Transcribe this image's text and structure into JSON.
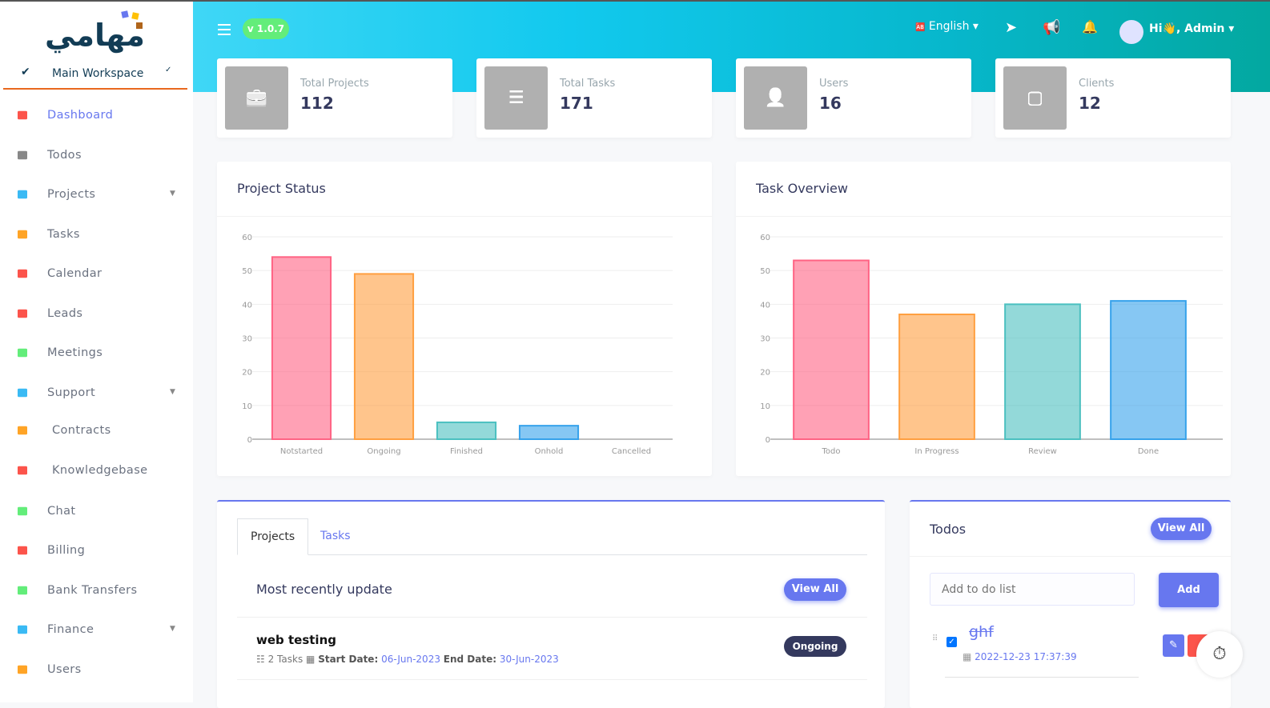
{
  "brand": {
    "logo_text": "مهامي",
    "workspace": "Main Workspace"
  },
  "sidebar": {
    "items": [
      {
        "label": "Dashboard",
        "icon": "fire-icon",
        "color": "#fc544b",
        "active": true
      },
      {
        "label": "Todos",
        "icon": "list-check-icon",
        "color": "#888"
      },
      {
        "label": "Projects",
        "icon": "file-icon",
        "color": "#3abaf4",
        "dropdown": true
      },
      {
        "label": "Tasks",
        "icon": "tasks-icon",
        "color": "#ffa426"
      },
      {
        "label": "Calendar",
        "icon": "calendar-icon",
        "color": "#fc544b"
      },
      {
        "label": "Leads",
        "icon": "phone-icon",
        "color": "#fc544b"
      },
      {
        "label": "Meetings",
        "icon": "handshake-icon",
        "color": "#63ed7a"
      },
      {
        "label": "Support",
        "icon": "ticket-icon",
        "color": "#3abaf4",
        "dropdown": true
      },
      {
        "label": "Contracts",
        "icon": "contract-icon",
        "color": "#ffa426",
        "sub": true
      },
      {
        "label": "Knowledgebase",
        "icon": "book-icon",
        "color": "#fc544b",
        "sub": true
      },
      {
        "label": "Chat",
        "icon": "chat-icon",
        "color": "#63ed7a"
      },
      {
        "label": "Billing",
        "icon": "invoice-icon",
        "color": "#fc544b"
      },
      {
        "label": "Bank Transfers",
        "icon": "bank-icon",
        "color": "#63ed7a"
      },
      {
        "label": "Finance",
        "icon": "money-icon",
        "color": "#3abaf4",
        "dropdown": true
      },
      {
        "label": "Users",
        "icon": "user-icon",
        "color": "#ffa426"
      }
    ]
  },
  "header": {
    "version": "v 1.0.7",
    "language": "English",
    "greeting": "Hi👋, Admin"
  },
  "stats": [
    {
      "title": "Total Projects",
      "value": "112",
      "icon": "briefcase-icon"
    },
    {
      "title": "Total Tasks",
      "value": "171",
      "icon": "list-icon"
    },
    {
      "title": "Users",
      "value": "16",
      "icon": "user-icon"
    },
    {
      "title": "Clients",
      "value": "12",
      "icon": "sticky-note-icon"
    }
  ],
  "chart_data": [
    {
      "type": "bar",
      "title": "Project Status",
      "categories": [
        "Notstarted",
        "Ongoing",
        "Finished",
        "Onhold",
        "Cancelled"
      ],
      "values": [
        54,
        49,
        5,
        4,
        0
      ],
      "ylim": [
        0,
        60
      ],
      "yticks": [
        0,
        10,
        20,
        30,
        40,
        50,
        60
      ],
      "grid": true,
      "colors": [
        "#ff6384",
        "#ff9f40",
        "#4bc0c0",
        "#36a2eb",
        "#9966ff"
      ]
    },
    {
      "type": "bar",
      "title": "Task Overview",
      "categories": [
        "Todo",
        "In Progress",
        "Review",
        "Done"
      ],
      "values": [
        53,
        37,
        40,
        41
      ],
      "ylim": [
        0,
        60
      ],
      "yticks": [
        0,
        10,
        20,
        30,
        40,
        50,
        60
      ],
      "grid": true,
      "colors": [
        "#ff6384",
        "#ff9f40",
        "#4bc0c0",
        "#36a2eb"
      ]
    }
  ],
  "projects_panel": {
    "tabs": [
      "Projects",
      "Tasks"
    ],
    "heading": "Most recently update",
    "view_all": "View All",
    "item": {
      "name": "web testing",
      "tasks": "2 Tasks",
      "start_label": "Start Date:",
      "start": "06-Jun-2023",
      "end_label": "End Date:",
      "end": "30-Jun-2023",
      "status": "Ongoing"
    }
  },
  "todos": {
    "title": "Todos",
    "view_all": "View All",
    "placeholder": "Add to do list",
    "add": "Add",
    "item": {
      "text": "ghf",
      "date": "2022-12-23 17:37:39",
      "done": true
    }
  }
}
